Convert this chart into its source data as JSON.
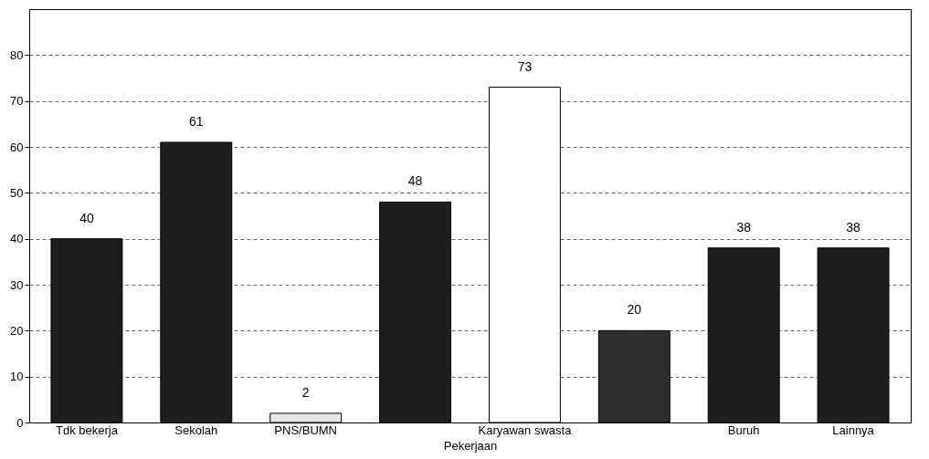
{
  "chart_data": {
    "type": "bar",
    "xlabel": "Pekerjaan",
    "categories": [
      "Tdk bekerja",
      "Sekolah",
      "PNS/BUMN",
      null,
      "Karyawan swasta",
      null,
      "Buruh",
      "Lainnya"
    ],
    "values": [
      40,
      61,
      2,
      48,
      73,
      20,
      38,
      38
    ],
    "colors": [
      "#1e1e1e",
      "#1e1e1e",
      "#e6e6e6",
      "#1e1e1e",
      "#ffffff",
      "#2e2e2e",
      "#1e1e1e",
      "#1e1e1e"
    ],
    "ylim": [
      0,
      90
    ],
    "yticks": [
      0,
      10,
      20,
      30,
      40,
      50,
      60,
      70,
      80
    ],
    "grid": true,
    "data_labels": true
  }
}
